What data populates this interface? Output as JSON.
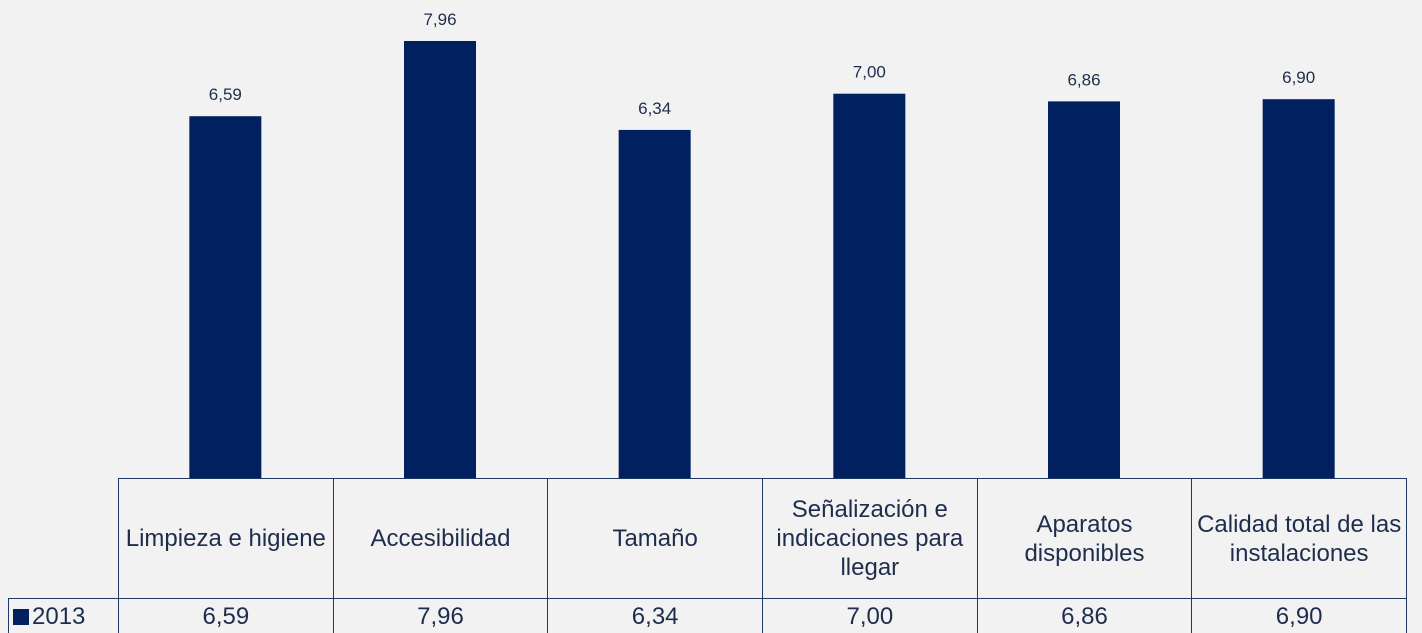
{
  "chart_data": {
    "type": "bar",
    "categories": [
      "Limpieza e higiene",
      "Accesibilidad",
      "Tamaño",
      "Señalización e indicaciones para llegar",
      "Aparatos disponibles",
      "Calidad total de las instalaciones"
    ],
    "series": [
      {
        "name": "2013",
        "color": "#002060",
        "values": [
          6.59,
          7.96,
          6.34,
          7.0,
          6.86,
          6.9
        ],
        "value_labels": [
          "6,59",
          "7,96",
          "6,34",
          "7,00",
          "6,86",
          "6,90"
        ]
      }
    ]
  }
}
